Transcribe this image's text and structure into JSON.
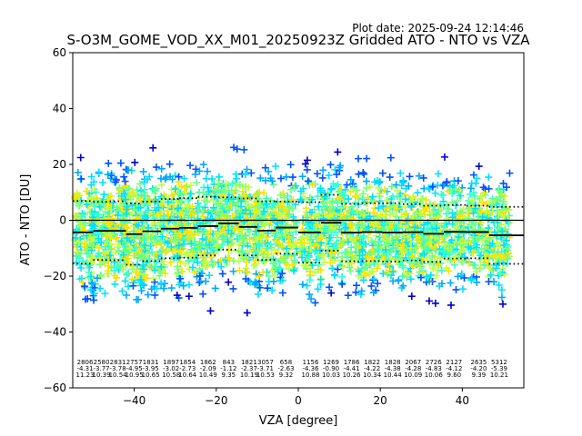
{
  "plot_date": "Plot date: 2025-09-24 12:14:46",
  "chart_data": {
    "type": "scatter",
    "title": "S-O3M_GOME_VOD_XX_M01_20250923Z Gridded ATO - NTO vs VZA",
    "xlabel": "VZA [degree]",
    "ylabel": "ATO - NTO [DU]",
    "xlim": [
      -55,
      55
    ],
    "ylim": [
      -60,
      60
    ],
    "xticks": [
      -40,
      -20,
      0,
      20,
      40
    ],
    "yticks": [
      -60,
      -40,
      -20,
      0,
      20,
      40,
      60
    ],
    "xtick_labels": [
      "−40",
      "−20",
      "0",
      "20",
      "40"
    ],
    "ytick_labels": [
      "−60",
      "−40",
      "−20",
      "0",
      "20",
      "40",
      "60"
    ],
    "marker": "+",
    "point_colors": [
      "#0000cc",
      "#0050ff",
      "#00a8ff",
      "#00e0ff",
      "#30ffd0",
      "#70ff80",
      "#c0ff40",
      "#ffe000"
    ],
    "zero_line": 0,
    "bins": [
      {
        "vza": -52,
        "count": "2806",
        "mean": "-4.31",
        "std": "11.23",
        "p_upper": 6.9,
        "p_lower": -15.5
      },
      {
        "vza": -48,
        "count": "2580",
        "mean": "-3.77",
        "std": "10.39",
        "p_upper": 6.6,
        "p_lower": -14.2
      },
      {
        "vza": -44,
        "count": "2831",
        "mean": "-3.78",
        "std": "10.54",
        "p_upper": 6.8,
        "p_lower": -14.3
      },
      {
        "vza": -40,
        "count": "2757",
        "mean": "-4.95",
        "std": "10.95",
        "p_upper": 6.0,
        "p_lower": -15.9
      },
      {
        "vza": -36,
        "count": "1831",
        "mean": "-3.95",
        "std": "10.65",
        "p_upper": 6.7,
        "p_lower": -14.6
      },
      {
        "vza": -31,
        "count": "1897",
        "mean": "-3.02",
        "std": "10.58",
        "p_upper": 7.6,
        "p_lower": -13.6
      },
      {
        "vza": -27,
        "count": "1854",
        "mean": "-2.73",
        "std": "10.64",
        "p_upper": 7.9,
        "p_lower": -13.4
      },
      {
        "vza": -22,
        "count": "1862",
        "mean": "-2.09",
        "std": "10.49",
        "p_upper": 8.4,
        "p_lower": -12.6
      },
      {
        "vza": -17,
        "count": "843",
        "mean": "-1.12",
        "std": "9.35",
        "p_upper": 8.2,
        "p_lower": -10.5
      },
      {
        "vza": -12,
        "count": "1821",
        "mean": "-2.37",
        "std": "10.19",
        "p_upper": 7.8,
        "p_lower": -12.6
      },
      {
        "vza": -8,
        "count": "3057",
        "mean": "-3.71",
        "std": "10.53",
        "p_upper": 6.8,
        "p_lower": -14.2
      },
      {
        "vza": -3,
        "count": "658",
        "mean": "-2.63",
        "std": "9.32",
        "p_upper": 6.7,
        "p_lower": -12.0
      },
      {
        "vza": 3,
        "count": "1156",
        "mean": "-4.36",
        "std": "10.88",
        "p_upper": 6.5,
        "p_lower": -15.2
      },
      {
        "vza": 8,
        "count": "1269",
        "mean": "-0.90",
        "std": "10.03",
        "p_upper": 9.1,
        "p_lower": -10.9
      },
      {
        "vza": 13,
        "count": "1786",
        "mean": "-4.41",
        "std": "10.26",
        "p_upper": 5.9,
        "p_lower": -14.7
      },
      {
        "vza": 18,
        "count": "1822",
        "mean": "-4.22",
        "std": "10.34",
        "p_upper": 6.1,
        "p_lower": -14.6
      },
      {
        "vza": 23,
        "count": "1828",
        "mean": "-4.38",
        "std": "10.44",
        "p_upper": 6.1,
        "p_lower": -14.8
      },
      {
        "vza": 28,
        "count": "2067",
        "mean": "-4.28",
        "std": "10.09",
        "p_upper": 5.8,
        "p_lower": -14.4
      },
      {
        "vza": 33,
        "count": "2726",
        "mean": "-4.83",
        "std": "10.06",
        "p_upper": 5.2,
        "p_lower": -14.9
      },
      {
        "vza": 38,
        "count": "2127",
        "mean": "-4.12",
        "std": "9.60",
        "p_upper": 5.5,
        "p_lower": -13.7
      },
      {
        "vza": 44,
        "count": "2635",
        "mean": "-4.20",
        "std": "9.39",
        "p_upper": 5.2,
        "p_lower": -13.6
      },
      {
        "vza": 49,
        "count": "5312",
        "mean": "-5.39",
        "std": "10.21",
        "p_upper": 4.8,
        "p_lower": -15.6
      }
    ]
  }
}
